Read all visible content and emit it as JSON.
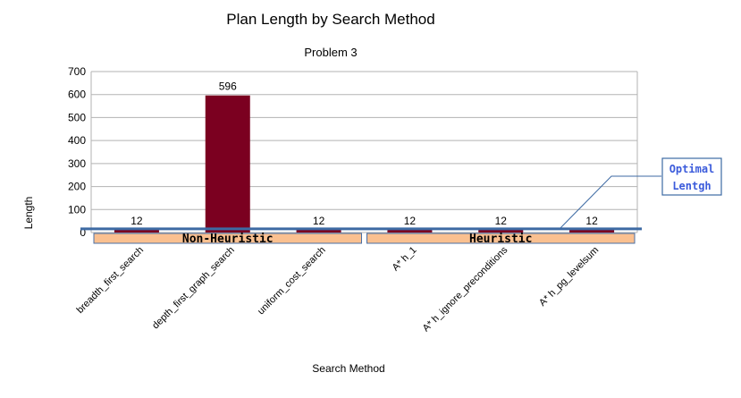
{
  "chart_data": {
    "type": "bar",
    "title": "Plan Length by Search Method",
    "subtitle": "Problem 3",
    "xlabel": "Search Method",
    "ylabel": "Length",
    "ylim": [
      0,
      700
    ],
    "yticks": [
      0,
      100,
      200,
      300,
      400,
      500,
      600,
      700
    ],
    "categories": [
      "breadth_first_search",
      "depth_first_graph_search",
      "uniform_cost_search",
      "A* h_1",
      "A* h_ignore_preconditions",
      "A* h_pg_levelsum"
    ],
    "values": [
      12,
      596,
      12,
      12,
      12,
      12
    ],
    "data_labels": [
      "12",
      "596",
      "12",
      "12",
      "12",
      "12"
    ],
    "grid": true,
    "bar_color": "#7b0020",
    "groups": [
      {
        "label": "Non-Heuristic",
        "from": 0,
        "to": 2
      },
      {
        "label": "Heuristic",
        "from": 3,
        "to": 5
      }
    ],
    "reference_line": {
      "label_line1": "Optimal",
      "label_line2": "Lentgh",
      "value": 12,
      "color": "#3d6aa3"
    }
  }
}
